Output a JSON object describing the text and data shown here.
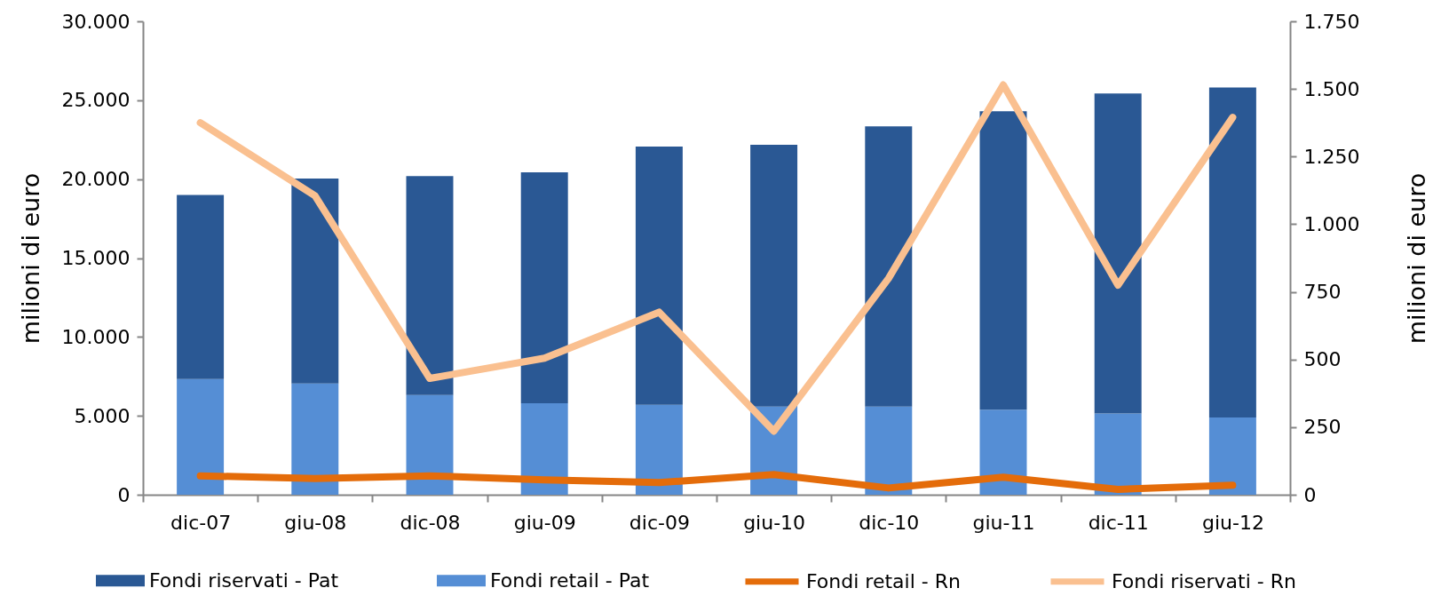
{
  "chart_data": {
    "type": "bar",
    "stacked": true,
    "categories": [
      "dic-07",
      "giu-08",
      "dic-08",
      "giu-09",
      "dic-09",
      "giu-10",
      "dic-10",
      "giu-11",
      "dic-11",
      "giu-12"
    ],
    "ylabel": "milioni di euro",
    "y2label": "milioni di euro",
    "ylim": [
      0,
      30000
    ],
    "yticks": [
      0,
      {
        "value": 5000,
        "label": "5.000"
      },
      {
        "value": 10000,
        "label": "10.000"
      },
      {
        "value": 15000,
        "label": "15.000"
      },
      {
        "value": 20000,
        "label": "20.000"
      },
      {
        "value": 25000,
        "label": "25.000"
      },
      {
        "value": 30000,
        "label": "30.000"
      }
    ],
    "y2lim": [
      0,
      1750
    ],
    "y2ticks": [
      0,
      250,
      500,
      750,
      {
        "value": 1000,
        "label": "1.000"
      },
      {
        "value": 1250,
        "label": "1.250"
      },
      {
        "value": 1500,
        "label": "1.500"
      },
      {
        "value": 1750,
        "label": "1.750"
      }
    ],
    "legend": "bottom",
    "line_style": "solid",
    "series": [
      {
        "name": "Fondi retail - Pat",
        "color": "#558ed5",
        "values": [
          7330,
          7050,
          6320,
          5800,
          5700,
          5590,
          5590,
          5390,
          5150,
          4900
        ]
      },
      {
        "name": "Fondi riservati - Pat",
        "color": "#2a5894",
        "values": [
          11670,
          12990,
          13870,
          14630,
          16370,
          16580,
          17760,
          18910,
          20270,
          20910
        ]
      },
      {
        "name": "Fondi retail - Rn",
        "type": "line",
        "axis": "y2",
        "color": "#e46c0a",
        "values": [
          70,
          60,
          70,
          55,
          45,
          75,
          25,
          65,
          20,
          35
        ]
      },
      {
        "name": "Fondi riservati - Rn",
        "type": "line",
        "axis": "y2",
        "color": "#fac090",
        "values": [
          1375,
          1105,
          430,
          505,
          675,
          235,
          800,
          1515,
          775,
          1395
        ]
      }
    ]
  }
}
